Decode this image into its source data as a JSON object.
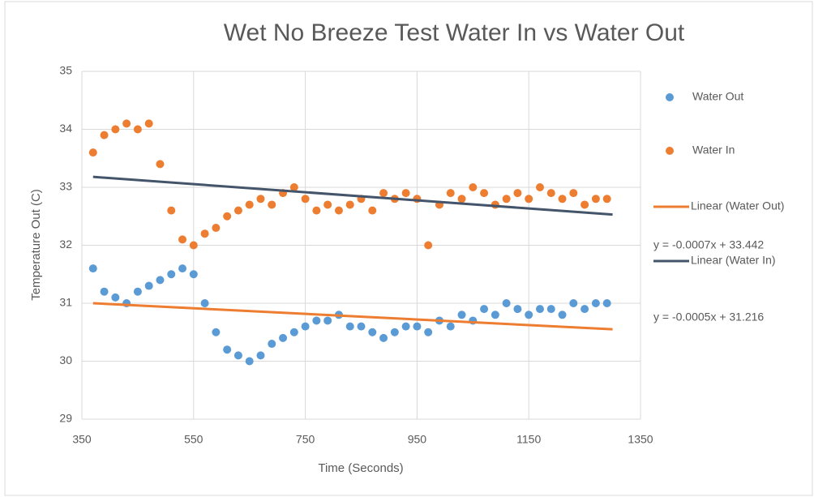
{
  "chart_data": {
    "type": "scatter",
    "title": "Wet No Breeze Test Water In vs Water Out",
    "x_label": "Time (Seconds)",
    "y_label": "Temperature Out (C)",
    "xlim": [
      350,
      1350
    ],
    "xticks": [
      350,
      550,
      750,
      950,
      1150,
      1350
    ],
    "ylim": [
      29,
      35
    ],
    "yticks": [
      29,
      30,
      31,
      32,
      33,
      34,
      35
    ],
    "grid": true,
    "legend": "right",
    "x": [
      370,
      390,
      410,
      430,
      450,
      470,
      490,
      510,
      530,
      550,
      570,
      590,
      610,
      630,
      650,
      670,
      690,
      710,
      730,
      750,
      770,
      790,
      810,
      830,
      850,
      870,
      890,
      910,
      930,
      950,
      970,
      990,
      1010,
      1030,
      1050,
      1070,
      1090,
      1110,
      1130,
      1150,
      1170,
      1190,
      1210,
      1230,
      1250,
      1270,
      1290
    ],
    "series": [
      {
        "name": "Water Out",
        "color": "#5b9bd5",
        "values": [
          31.6,
          31.2,
          31.1,
          31.0,
          31.2,
          31.3,
          31.4,
          31.5,
          31.6,
          31.5,
          31.0,
          30.5,
          30.2,
          30.1,
          30.0,
          30.1,
          30.3,
          30.4,
          30.5,
          30.6,
          30.7,
          30.7,
          30.8,
          30.6,
          30.6,
          30.5,
          30.4,
          30.5,
          30.6,
          30.6,
          30.5,
          30.7,
          30.6,
          30.8,
          30.7,
          30.9,
          30.8,
          31.0,
          30.9,
          30.8,
          30.9,
          30.9,
          30.8,
          31.0,
          30.9,
          31.0,
          31.0
        ]
      },
      {
        "name": "Water In",
        "color": "#ed7d31",
        "values": [
          33.6,
          33.9,
          34.0,
          34.1,
          34.0,
          34.1,
          33.4,
          32.6,
          32.1,
          32.0,
          32.2,
          32.3,
          32.5,
          32.6,
          32.7,
          32.8,
          32.7,
          32.9,
          33.0,
          32.8,
          32.6,
          32.7,
          32.6,
          32.7,
          32.8,
          32.6,
          32.9,
          32.8,
          32.9,
          32.8,
          32.0,
          32.7,
          32.9,
          32.8,
          33.0,
          32.9,
          32.7,
          32.8,
          32.9,
          32.8,
          33.0,
          32.9,
          32.8,
          32.9,
          32.7,
          32.8,
          32.8
        ]
      }
    ],
    "trendlines": [
      {
        "name": "Linear (Water Out)",
        "color": "#ed7d31",
        "x": [
          370,
          1300
        ],
        "values": [
          31.0,
          30.55
        ],
        "equation": "y = -0.0005x + 31.216"
      },
      {
        "name": "Linear (Water In)",
        "color": "#44546a",
        "x": [
          370,
          1300
        ],
        "values": [
          33.18,
          32.53
        ],
        "equation": "y = -0.0007x + 33.442"
      }
    ]
  }
}
